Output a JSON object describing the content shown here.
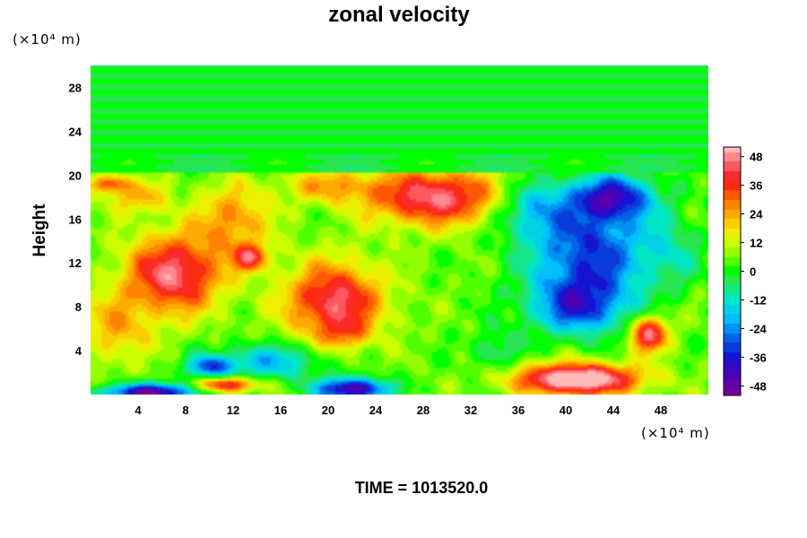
{
  "chart_data": {
    "type": "heatmap",
    "title": "zonal velocity",
    "ylabel": "Height",
    "xlabel": "",
    "x_unit": "(×10⁴ m)",
    "y_unit": "(×10⁴ m)",
    "x_ticks": [
      4,
      8,
      12,
      16,
      20,
      24,
      28,
      32,
      36,
      40,
      44,
      48
    ],
    "y_ticks": [
      4,
      8,
      12,
      16,
      20,
      24,
      28
    ],
    "xlim": [
      0,
      52
    ],
    "ylim": [
      0,
      30
    ],
    "colorbar": {
      "ticks": [
        48,
        36,
        24,
        12,
        0,
        -12,
        -24,
        -36,
        -48
      ],
      "range": [
        -52,
        52
      ]
    },
    "blobs": [
      {
        "x": 7,
        "y": 11,
        "sx": 4,
        "sy": 3.5,
        "v": 42
      },
      {
        "x": 20.5,
        "y": 8.5,
        "sx": 4,
        "sy": 3.5,
        "v": 40
      },
      {
        "x": 21.5,
        "y": 5.5,
        "sx": 1.8,
        "sy": 1.3,
        "v": 14
      },
      {
        "x": 29,
        "y": 18,
        "sx": 5.5,
        "sy": 2.5,
        "v": 42
      },
      {
        "x": 20,
        "y": 19,
        "sx": 4,
        "sy": 1.5,
        "v": 18
      },
      {
        "x": 12,
        "y": 16,
        "sx": 3,
        "sy": 3,
        "v": 22
      },
      {
        "x": 4,
        "y": 18,
        "sx": 2.5,
        "sy": 1.5,
        "v": 18
      },
      {
        "x": 1.5,
        "y": 19.2,
        "sx": 1.5,
        "sy": 0.8,
        "v": 30
      },
      {
        "x": 2,
        "y": 6,
        "sx": 3,
        "sy": 3,
        "v": 18
      },
      {
        "x": 47,
        "y": 5.5,
        "sx": 1.6,
        "sy": 1.6,
        "v": 42
      },
      {
        "x": 41,
        "y": 1.4,
        "sx": 5,
        "sy": 1.4,
        "v": 58
      },
      {
        "x": 11.5,
        "y": 0.9,
        "sx": 2.5,
        "sy": 0.7,
        "v": 40
      },
      {
        "x": 13.5,
        "y": 12.5,
        "sx": 1.5,
        "sy": 1.2,
        "v": 32
      },
      {
        "x": 42,
        "y": 13,
        "sx": 5,
        "sy": 5,
        "v": -38
      },
      {
        "x": 41,
        "y": 8,
        "sx": 4,
        "sy": 2.5,
        "v": -30
      },
      {
        "x": 44,
        "y": 18,
        "sx": 3.5,
        "sy": 2,
        "v": -38
      },
      {
        "x": 37,
        "y": 17,
        "sx": 3,
        "sy": 2.5,
        "v": -20
      },
      {
        "x": 15,
        "y": 3,
        "sx": 4.5,
        "sy": 1.6,
        "v": -24
      },
      {
        "x": 10,
        "y": 2.5,
        "sx": 1.8,
        "sy": 1,
        "v": -32
      },
      {
        "x": 22,
        "y": 0.5,
        "sx": 3,
        "sy": 1,
        "v": -52
      },
      {
        "x": 5,
        "y": 0.2,
        "sx": 4,
        "sy": 0.8,
        "v": -52
      },
      {
        "x": 34,
        "y": 4,
        "sx": 2,
        "sy": 2,
        "v": -12
      },
      {
        "x": 49,
        "y": 13,
        "sx": 2.5,
        "sy": 3,
        "v": -12
      }
    ]
  },
  "footer": {
    "time_label": "TIME = 1013520.0"
  }
}
